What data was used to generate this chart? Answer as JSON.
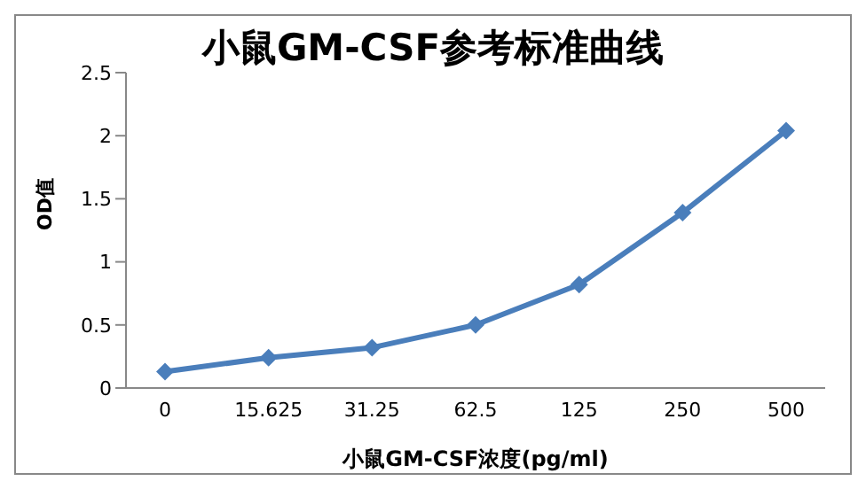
{
  "chart_data": {
    "type": "line",
    "title": "小鼠GM-CSF参考标准曲线",
    "xlabel": "小鼠GM-CSF浓度(pg/ml)",
    "ylabel": "OD值",
    "categories": [
      "0",
      "15.625",
      "31.25",
      "62.5",
      "125",
      "250",
      "500"
    ],
    "series": [
      {
        "color": "#4a7ebb",
        "values": [
          0.13,
          0.24,
          0.32,
          0.5,
          0.82,
          1.39,
          2.04
        ]
      }
    ],
    "ylim": [
      0,
      2.5
    ],
    "yticks": [
      0,
      0.5,
      1,
      1.5,
      2,
      2.5
    ],
    "grid": false,
    "legend": false,
    "marker": "diamond",
    "line_style": "solid"
  }
}
